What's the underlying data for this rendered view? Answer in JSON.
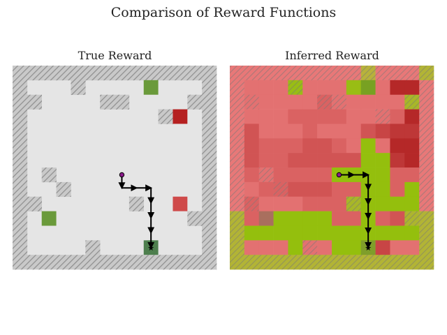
{
  "chart_data": {
    "title": "Comparison of Reward Functions",
    "type": "heatmap",
    "grid_size": 14,
    "colors": {
      "floor": "#e5e5e5",
      "wall_fill": "#c9c9c9",
      "wall_hatch": "#8e8e8e",
      "positive": "#6a9a3a",
      "positive_dark": "#4e7f4e",
      "negative": "#b52020",
      "negative_light": "#cf4a4a",
      "agent_start": "#8a1a8a",
      "path": "#000000"
    },
    "panels": [
      {
        "name": "true-reward",
        "title": "True Reward",
        "walls": [
          [
            0,
            0
          ],
          [
            1,
            0
          ],
          [
            2,
            0
          ],
          [
            3,
            0
          ],
          [
            4,
            0
          ],
          [
            5,
            0
          ],
          [
            6,
            0
          ],
          [
            7,
            0
          ],
          [
            8,
            0
          ],
          [
            9,
            0
          ],
          [
            10,
            0
          ],
          [
            11,
            0
          ],
          [
            12,
            0
          ],
          [
            13,
            0
          ],
          [
            0,
            13
          ],
          [
            1,
            13
          ],
          [
            2,
            13
          ],
          [
            3,
            13
          ],
          [
            4,
            13
          ],
          [
            5,
            13
          ],
          [
            6,
            13
          ],
          [
            7,
            13
          ],
          [
            8,
            13
          ],
          [
            9,
            13
          ],
          [
            10,
            13
          ],
          [
            11,
            13
          ],
          [
            12,
            13
          ],
          [
            13,
            13
          ],
          [
            0,
            1
          ],
          [
            0,
            2
          ],
          [
            0,
            3
          ],
          [
            0,
            4
          ],
          [
            0,
            5
          ],
          [
            0,
            6
          ],
          [
            0,
            7
          ],
          [
            0,
            8
          ],
          [
            0,
            9
          ],
          [
            0,
            10
          ],
          [
            0,
            11
          ],
          [
            0,
            12
          ],
          [
            13,
            1
          ],
          [
            13,
            2
          ],
          [
            13,
            3
          ],
          [
            13,
            4
          ],
          [
            13,
            5
          ],
          [
            13,
            6
          ],
          [
            13,
            7
          ],
          [
            13,
            8
          ],
          [
            13,
            9
          ],
          [
            13,
            10
          ],
          [
            13,
            11
          ],
          [
            13,
            12
          ],
          [
            4,
            1
          ],
          [
            1,
            2
          ],
          [
            6,
            2
          ],
          [
            7,
            2
          ],
          [
            12,
            2
          ],
          [
            10,
            3
          ],
          [
            2,
            7
          ],
          [
            3,
            8
          ],
          [
            1,
            9
          ],
          [
            8,
            9
          ],
          [
            12,
            10
          ],
          [
            5,
            12
          ]
        ],
        "rewards": [
          {
            "cell": [
              9,
              1
            ],
            "value": 1
          },
          {
            "cell": [
              11,
              3
            ],
            "value": -1
          },
          {
            "cell": [
              11,
              9
            ],
            "value": -0.6
          },
          {
            "cell": [
              2,
              10
            ],
            "value": 1
          },
          {
            "cell": [
              9,
              12
            ],
            "value": 0.7
          }
        ],
        "path": [
          [
            7.5,
            7.5
          ],
          [
            7.5,
            8.4
          ],
          [
            9.5,
            8.4
          ],
          [
            9.5,
            12.5
          ]
        ],
        "start": [
          7.5,
          7.5
        ],
        "goal": [
          9.5,
          12.5
        ]
      },
      {
        "name": "inferred-reward",
        "title": "Inferred Reward",
        "values": [
          [
            -0.3,
            -0.4,
            -0.4,
            -0.4,
            -0.3,
            -0.3,
            -0.3,
            -0.2,
            -0.3,
            0.2,
            -0.3,
            -0.3,
            -0.3,
            0.3
          ],
          [
            -0.4,
            -0.5,
            -0.5,
            -0.5,
            0.8,
            -0.5,
            -0.5,
            -0.5,
            0.8,
            0.8,
            -0.5,
            -1.0,
            -1.0,
            -0.3
          ],
          [
            -0.4,
            -0.5,
            -0.5,
            -0.5,
            -0.5,
            -0.5,
            -0.6,
            -0.5,
            -0.5,
            -0.5,
            -0.5,
            -0.5,
            0.5,
            -0.3
          ],
          [
            -0.4,
            -0.5,
            -0.5,
            -0.5,
            -0.6,
            -0.6,
            -0.6,
            -0.6,
            -0.5,
            -0.5,
            -0.5,
            -0.6,
            -1.0,
            -0.3
          ],
          [
            -0.4,
            -0.7,
            -0.5,
            -0.5,
            -0.5,
            -0.6,
            -0.5,
            -0.5,
            -0.5,
            -0.7,
            -0.8,
            -0.9,
            -0.9,
            -0.3
          ],
          [
            -0.4,
            -0.7,
            -0.6,
            -0.6,
            -0.6,
            -0.7,
            -0.7,
            -0.6,
            -0.5,
            0.9,
            -0.5,
            -1.0,
            -1.0,
            -0.3
          ],
          [
            -0.4,
            -0.7,
            -0.6,
            -0.6,
            -0.7,
            -0.7,
            -0.7,
            -0.7,
            -0.7,
            0.9,
            0.9,
            -0.9,
            -1.0,
            -0.3
          ],
          [
            -0.4,
            -0.6,
            -0.5,
            -0.6,
            -0.6,
            -0.6,
            -0.6,
            0.9,
            0.9,
            0.9,
            0.9,
            -0.6,
            -0.6,
            -0.3
          ],
          [
            -0.4,
            -0.5,
            -0.6,
            -0.6,
            -0.7,
            -0.7,
            -0.7,
            -0.6,
            -0.6,
            0.9,
            0.9,
            -0.6,
            0.9,
            -0.3
          ],
          [
            -0.3,
            -0.6,
            -0.5,
            -0.5,
            -0.5,
            -0.6,
            -0.6,
            -0.6,
            0.5,
            0.9,
            0.9,
            0.9,
            0.9,
            -0.3
          ],
          [
            0.3,
            -0.6,
            -0.5,
            0.9,
            0.9,
            0.9,
            0.9,
            -0.6,
            -0.6,
            0.9,
            -0.6,
            -0.7,
            0.4,
            0.3
          ],
          [
            0.3,
            0.9,
            0.9,
            0.9,
            0.9,
            0.9,
            0.9,
            0.9,
            0.9,
            0.9,
            0.9,
            0.9,
            0.9,
            0.3
          ],
          [
            0.3,
            -0.5,
            -0.5,
            -0.5,
            0.9,
            -0.5,
            -0.5,
            0.9,
            0.9,
            0.6,
            -0.8,
            -0.5,
            -0.5,
            0.3
          ],
          [
            0.3,
            0.3,
            0.3,
            0.3,
            0.3,
            0.3,
            0.3,
            0.3,
            0.3,
            0.3,
            0.3,
            0.3,
            0.3,
            0.3
          ]
        ],
        "path": [
          [
            7.5,
            7.5
          ],
          [
            9.5,
            7.5
          ],
          [
            9.5,
            12.5
          ]
        ],
        "start": [
          7.5,
          7.5
        ],
        "goal": [
          9.5,
          12.5
        ]
      }
    ]
  }
}
